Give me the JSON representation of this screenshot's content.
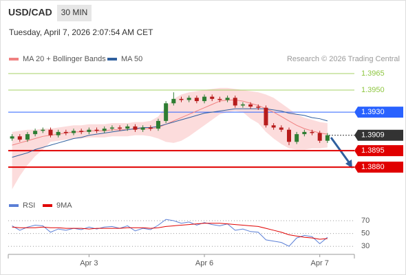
{
  "header": {
    "symbol": "USD/CAD",
    "timeframe": "30 MIN",
    "timestamp": "Tuesday, April 7, 2026 2:07:54 AM CET",
    "credit": "Research © 2026 Trading Central"
  },
  "chart_data": [
    {
      "type": "candlestick",
      "candles": {
        "up_color": "#2e7d32",
        "down_color": "#b71c1c",
        "open": [
          1.3906,
          1.3908,
          1.3905,
          1.391,
          1.3913,
          1.3914,
          1.3909,
          1.3912,
          1.3911,
          1.3913,
          1.3912,
          1.3914,
          1.3913,
          1.3915,
          1.3916,
          1.3915,
          1.3917,
          1.3914,
          1.3916,
          1.3915,
          1.3922,
          1.3938,
          1.3942,
          1.3941,
          1.3943,
          1.394,
          1.3944,
          1.3942,
          1.3941,
          1.3943,
          1.3936,
          1.3937,
          1.3935,
          1.3934,
          1.3918,
          1.3916,
          1.3914,
          1.3903,
          1.391,
          1.3912,
          1.3911,
          1.3904
        ],
        "high": [
          1.391,
          1.391,
          1.3912,
          1.3915,
          1.3916,
          1.3916,
          1.3914,
          1.3914,
          1.3915,
          1.3915,
          1.3916,
          1.3916,
          1.3917,
          1.3918,
          1.3918,
          1.3919,
          1.3919,
          1.3918,
          1.3918,
          1.3924,
          1.394,
          1.3948,
          1.3944,
          1.3945,
          1.3945,
          1.3946,
          1.3946,
          1.3944,
          1.3945,
          1.3945,
          1.3939,
          1.3939,
          1.3937,
          1.3936,
          1.392,
          1.3918,
          1.3916,
          1.3912,
          1.3914,
          1.3914,
          1.3913,
          1.3911
        ],
        "low": [
          1.3904,
          1.3903,
          1.3903,
          1.3908,
          1.3911,
          1.3907,
          1.3907,
          1.3909,
          1.3909,
          1.391,
          1.391,
          1.3911,
          1.3911,
          1.3913,
          1.3913,
          1.3913,
          1.3912,
          1.3912,
          1.3913,
          1.3913,
          1.392,
          1.3936,
          1.3939,
          1.3939,
          1.3938,
          1.3938,
          1.394,
          1.3939,
          1.3939,
          1.3934,
          1.3934,
          1.3933,
          1.3932,
          1.3916,
          1.3914,
          1.3912,
          1.39,
          1.3901,
          1.3908,
          1.3909,
          1.3902,
          1.3902
        ],
        "close": [
          1.3908,
          1.3905,
          1.391,
          1.3913,
          1.3914,
          1.3909,
          1.3912,
          1.3911,
          1.3913,
          1.3912,
          1.3914,
          1.3913,
          1.3915,
          1.3916,
          1.3915,
          1.3917,
          1.3914,
          1.3916,
          1.3915,
          1.3922,
          1.3938,
          1.3942,
          1.3941,
          1.3943,
          1.394,
          1.3944,
          1.3942,
          1.3941,
          1.3943,
          1.3936,
          1.3937,
          1.3935,
          1.3934,
          1.3918,
          1.3916,
          1.3914,
          1.3903,
          1.391,
          1.3912,
          1.3911,
          1.3904,
          1.3909
        ]
      },
      "series": [
        {
          "name": "MA 20 + Bollinger Bands",
          "color": "#f08080",
          "band_color": "#fbd3d3",
          "values": [
            1.39,
            1.3902,
            1.3904,
            1.3906,
            1.3908,
            1.3909,
            1.391,
            1.3911,
            1.3912,
            1.3912,
            1.3913,
            1.3913,
            1.3913,
            1.3914,
            1.3914,
            1.3914,
            1.3915,
            1.3915,
            1.3915,
            1.3916,
            1.3919,
            1.3922,
            1.3925,
            1.3928,
            1.3931,
            1.3934,
            1.3937,
            1.394,
            1.3941,
            1.3941,
            1.394,
            1.3938,
            1.3936,
            1.3933,
            1.393,
            1.3926,
            1.3922,
            1.3918,
            1.3915,
            1.3913,
            1.3911,
            1.391
          ],
          "upper": [
            1.3912,
            1.3913,
            1.3914,
            1.3914,
            1.3915,
            1.3915,
            1.3916,
            1.3917,
            1.3918,
            1.3918,
            1.3919,
            1.3919,
            1.3919,
            1.392,
            1.392,
            1.392,
            1.3921,
            1.3921,
            1.3922,
            1.3926,
            1.3935,
            1.3942,
            1.3946,
            1.3948,
            1.3949,
            1.395,
            1.3951,
            1.3952,
            1.3952,
            1.3951,
            1.395,
            1.3949,
            1.3948,
            1.3946,
            1.3943,
            1.3938,
            1.3933,
            1.3928,
            1.3925,
            1.3923,
            1.3921,
            1.392
          ],
          "lower": [
            1.386,
            1.3872,
            1.3882,
            1.389,
            1.3896,
            1.3903,
            1.3904,
            1.3905,
            1.3906,
            1.3906,
            1.3907,
            1.3907,
            1.3907,
            1.3908,
            1.3908,
            1.3908,
            1.3909,
            1.3909,
            1.3908,
            1.3906,
            1.3903,
            1.3902,
            1.3904,
            1.3908,
            1.3913,
            1.3918,
            1.3923,
            1.3928,
            1.393,
            1.3931,
            1.393,
            1.3924,
            1.392,
            1.3912,
            1.3906,
            1.3901,
            1.3897,
            1.3896,
            1.3896,
            1.3897,
            1.3897,
            1.3898
          ]
        },
        {
          "name": "MA 50",
          "color": "#2f5f9e",
          "values": [
            1.3889,
            1.3891,
            1.3893,
            1.3896,
            1.3898,
            1.39,
            1.3902,
            1.3904,
            1.3906,
            1.3907,
            1.3909,
            1.391,
            1.3911,
            1.3912,
            1.3913,
            1.3914,
            1.3915,
            1.3916,
            1.3916,
            1.3917,
            1.3919,
            1.3921,
            1.3923,
            1.3925,
            1.3927,
            1.3929,
            1.393,
            1.3931,
            1.3932,
            1.3933,
            1.3933,
            1.3933,
            1.3933,
            1.3933,
            1.3932,
            1.3931,
            1.3929,
            1.3928,
            1.3927,
            1.3925,
            1.3924,
            1.3922
          ]
        }
      ],
      "xlim": [
        -0.5,
        44.5
      ],
      "ylim": [
        1.3857,
        1.39725
      ],
      "yticks": [
        1.3965,
        {
          "value": 1.395,
          "label": "1.3950"
        },
        {
          "value": 1.393,
          "label": "1.3930"
        },
        1.3909,
        1.3895,
        {
          "value": 1.388,
          "label": "1.3880"
        }
      ],
      "level_colors": [
        "#8dc63f",
        "#8dc63f",
        "#2962ff",
        "#333333",
        "#e00000",
        "#e00000"
      ],
      "level_styles": [
        "label",
        "label",
        "box",
        "box-dotted",
        "box",
        "box"
      ]
    },
    {
      "type": "line",
      "series": [
        {
          "name": "RSI",
          "color": "#5b7fd6",
          "values": [
            62,
            55,
            60,
            63,
            62,
            52,
            57,
            55,
            58,
            56,
            60,
            57,
            60,
            61,
            58,
            62,
            54,
            58,
            56,
            63,
            72,
            70,
            66,
            68,
            63,
            67,
            64,
            62,
            65,
            55,
            57,
            53,
            52,
            40,
            38,
            36,
            30,
            43,
            47,
            45,
            34,
            44
          ]
        },
        {
          "name": "9MA",
          "color": "#e00000",
          "values": [
            60,
            59,
            59,
            59,
            60,
            59,
            59,
            58,
            58,
            58,
            57,
            58,
            58,
            58,
            58,
            59,
            59,
            59,
            58,
            59,
            61,
            62,
            63,
            64,
            65,
            66,
            66,
            66,
            65,
            64,
            63,
            62,
            61,
            58,
            55,
            52,
            48,
            46,
            44,
            43,
            41,
            42
          ]
        }
      ],
      "xlim": [
        -0.5,
        44.5
      ],
      "ylim": [
        20,
        80
      ],
      "yticks": [
        30,
        50,
        70
      ],
      "xticks": [
        {
          "value": 10,
          "label": "Apr 3"
        },
        {
          "value": 25,
          "label": "Apr 6"
        },
        {
          "value": 40,
          "label": "Apr 7"
        }
      ]
    }
  ]
}
